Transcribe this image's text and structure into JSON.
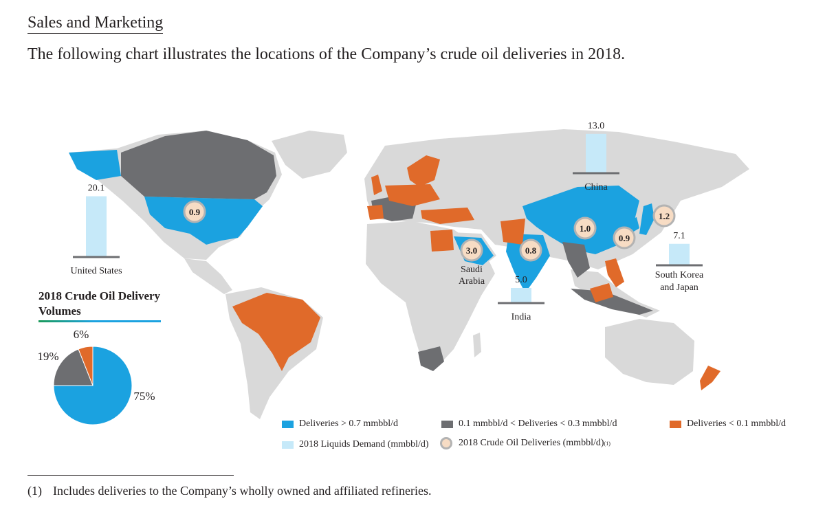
{
  "page": {
    "heading": "Sales and Marketing",
    "intro": "The following chart illustrates the locations of the Company’s crude oil deliveries in 2018."
  },
  "colors": {
    "high": "#1ba2e0",
    "mid": "#6d6e71",
    "low": "#e06a2a",
    "land": "#d9d9d9",
    "demand_bar": "#c6e9f9",
    "circle_fill": "#f7dcc4",
    "circle_border": "#b3b3b3"
  },
  "chart_data": [
    {
      "type": "bar",
      "subtype": "map-annotation",
      "series_label": "2018 Liquids Demand (mmbbl/d)",
      "categories": [
        "United States",
        "China",
        "South Korea and Japan",
        "India",
        "Saudi Arabia"
      ],
      "demand_values": [
        20.1,
        13.0,
        7.1,
        5.0,
        null
      ],
      "demand_value_labels": [
        "20.1",
        "13.0",
        "7.1",
        "5.0",
        ""
      ],
      "region_labels": {
        "us": "United States",
        "china": "China",
        "skj_line1": "South Korea",
        "skj_line2": "and Japan",
        "india": "India",
        "saudi_line1": "Saudi",
        "saudi_line2": "Arabia"
      },
      "deliveries_series_label": "2018 Crude Oil Deliveries (mmbbl/d)",
      "deliveries": [
        {
          "region": "United States",
          "value": 0.9
        },
        {
          "region": "Saudi Arabia",
          "value": 3.0
        },
        {
          "region": "India",
          "value": 0.8
        },
        {
          "region": "China",
          "value": 1.0
        },
        {
          "region": "South Korea",
          "value": 0.9
        },
        {
          "region": "Japan",
          "value": 1.2
        }
      ],
      "delivery_labels": [
        "0.9",
        "3.0",
        "0.8",
        "1.0",
        "0.9",
        "1.2"
      ]
    },
    {
      "type": "pie",
      "title_line1": "2018 Crude Oil Delivery",
      "title_line2": "Volumes",
      "values": [
        75,
        19,
        6
      ],
      "labels": [
        "75%",
        "19%",
        "6%"
      ],
      "slice_colors": [
        "#1ba2e0",
        "#6d6e71",
        "#e06a2a"
      ]
    }
  ],
  "legend": {
    "high": "Deliveries > 0.7 mmbbl/d",
    "mid": "0.1 mmbbl/d < Deliveries < 0.3 mmbbl/d",
    "low": "Deliveries < 0.1 mmbbl/d",
    "demand": "2018 Liquids Demand (mmbbl/d)",
    "deliveries": "2018 Crude Oil Deliveries (mmbbl/d)",
    "deliveries_note": "(1)"
  },
  "footnote": {
    "num": "(1)",
    "text": "Includes deliveries to the Company’s wholly owned and affiliated refineries."
  }
}
